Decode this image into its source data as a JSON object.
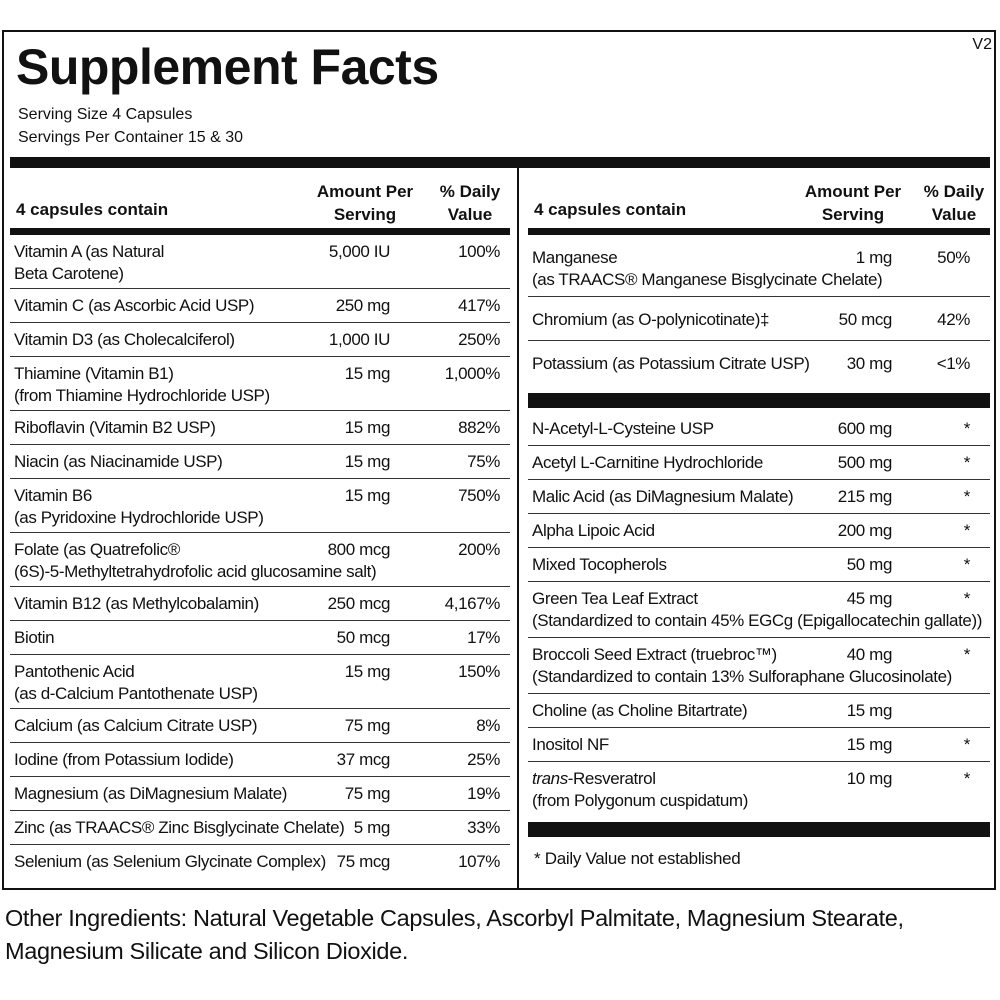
{
  "title": "Supplement Facts",
  "version": "V2",
  "serving_size": "Serving Size  4 Capsules",
  "servings_per_container": "Servings Per Container  15 & 30",
  "headers": {
    "contain": "4 capsules contain",
    "amount_1": "Amount Per",
    "amount_2": "Serving",
    "dv_1": "% Daily",
    "dv_2": "Value"
  },
  "left_rows": [
    {
      "lines": [
        "Vitamin A (as Natural",
        "Beta Carotene)"
      ],
      "amount": "5,000 IU",
      "dv": "100%"
    },
    {
      "lines": [
        "Vitamin C (as Ascorbic Acid USP)"
      ],
      "amount": "250 mg",
      "dv": "417%"
    },
    {
      "lines": [
        "Vitamin D3 (as Cholecalciferol)"
      ],
      "amount": "1,000 IU",
      "dv": "250%"
    },
    {
      "lines": [
        "Thiamine (Vitamin B1)",
        "(from Thiamine Hydrochloride USP)"
      ],
      "amount": "15 mg",
      "dv": "1,000%"
    },
    {
      "lines": [
        "Riboflavin (Vitamin B2 USP)"
      ],
      "amount": "15 mg",
      "dv": "882%"
    },
    {
      "lines": [
        "Niacin (as Niacinamide USP)"
      ],
      "amount": "15 mg",
      "dv": "75%"
    },
    {
      "lines": [
        "Vitamin B6",
        "(as Pyridoxine Hydrochloride USP)"
      ],
      "amount": "15 mg",
      "dv": "750%"
    },
    {
      "lines": [
        "Folate (as Quatrefolic®",
        "(6S)-5-Methyltetrahydrofolic acid glucosamine salt)"
      ],
      "amount": "800 mcg",
      "dv": "200%"
    },
    {
      "lines": [
        "Vitamin B12 (as Methylcobalamin)"
      ],
      "amount": "250 mcg",
      "dv": "4,167%"
    },
    {
      "lines": [
        "Biotin"
      ],
      "amount": "50 mcg",
      "dv": "17%"
    },
    {
      "lines": [
        "Pantothenic Acid",
        "(as d-Calcium Pantothenate USP)"
      ],
      "amount": "15 mg",
      "dv": "150%"
    },
    {
      "lines": [
        "Calcium (as Calcium Citrate USP)"
      ],
      "amount": "75 mg",
      "dv": "8%"
    },
    {
      "lines": [
        "Iodine (from Potassium Iodide)"
      ],
      "amount": "37 mcg",
      "dv": "25%"
    },
    {
      "lines": [
        "Magnesium (as DiMagnesium Malate)"
      ],
      "amount": "75 mg",
      "dv": "19%"
    },
    {
      "lines": [
        "Zinc (as TRAACS® Zinc Bisglycinate Chelate)"
      ],
      "amount": "5 mg",
      "dv": "33%"
    },
    {
      "lines": [
        "Selenium (as Selenium Glycinate Complex)"
      ],
      "amount": "75 mcg",
      "dv": "107%"
    }
  ],
  "right_rows_a": [
    {
      "lines": [
        "Manganese",
        "(as TRAACS® Manganese Bisglycinate Chelate)"
      ],
      "amount": "1 mg",
      "dv": "50%"
    },
    {
      "lines": [
        "Chromium (as O-polynicotinate)‡"
      ],
      "amount": "50 mcg",
      "dv": "42%"
    },
    {
      "lines": [
        "Potassium (as Potassium Citrate USP)"
      ],
      "amount": "30 mg",
      "dv": "<1%"
    }
  ],
  "right_rows_b": [
    {
      "lines": [
        "N-Acetyl-L-Cysteine USP"
      ],
      "amount": "600 mg",
      "dv": "*"
    },
    {
      "lines": [
        "Acetyl L-Carnitine Hydrochloride"
      ],
      "amount": "500 mg",
      "dv": "*"
    },
    {
      "lines": [
        "Malic Acid (as DiMagnesium Malate)"
      ],
      "amount": "215 mg",
      "dv": "*"
    },
    {
      "lines": [
        "Alpha Lipoic Acid"
      ],
      "amount": "200 mg",
      "dv": "*"
    },
    {
      "lines": [
        "Mixed Tocopherols"
      ],
      "amount": "50 mg",
      "dv": "*"
    },
    {
      "lines": [
        "Green Tea Leaf Extract",
        "(Standardized to contain 45% EGCg (Epigallocatechin gallate))"
      ],
      "amount": "45 mg",
      "dv": "*"
    },
    {
      "lines": [
        "Broccoli Seed Extract (truebroc™)",
        "(Standardized to contain 13% Sulforaphane Glucosinolate)"
      ],
      "amount": "40 mg",
      "dv": "*"
    },
    {
      "lines": [
        "Choline (as Choline Bitartrate)"
      ],
      "amount": "15 mg",
      "dv": ""
    },
    {
      "lines": [
        "Inositol NF"
      ],
      "amount": "15 mg",
      "dv": "*"
    },
    {
      "lines": [
        "-Resveratrol",
        "(from Polygonum cuspidatum)"
      ],
      "italic_prefix": "trans",
      "amount": "10 mg",
      "dv": "*"
    }
  ],
  "footnote": "*  Daily Value not established",
  "other_ingredients": [
    "Other Ingredients: Natural Vegetable Capsules, Ascorbyl Palmitate, Magnesium Stearate,",
    "Magnesium Silicate and Silicon Dioxide."
  ]
}
